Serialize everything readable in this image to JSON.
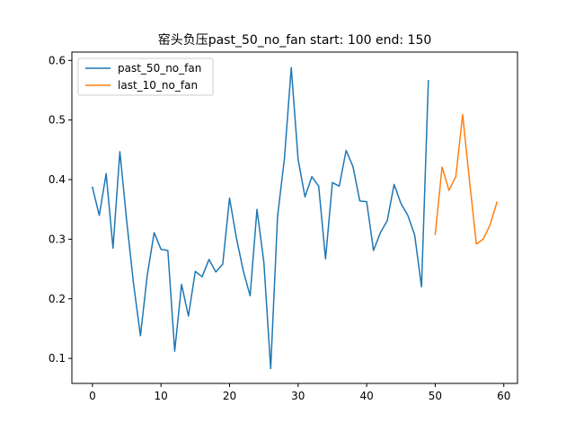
{
  "chart_data": {
    "type": "line",
    "title": "窑头负压past_50_no_fan  start: 100 end: 150",
    "xlabel": "",
    "ylabel": "",
    "xlim": [
      -3,
      62
    ],
    "ylim": [
      0.058,
      0.614
    ],
    "xticks": [
      0,
      10,
      20,
      30,
      40,
      50,
      60
    ],
    "yticks": [
      0.1,
      0.2,
      0.3,
      0.4,
      0.5,
      0.6
    ],
    "grid": false,
    "legend_position": "top-left",
    "series": [
      {
        "name": "past_50_no_fan",
        "color": "#1f77b4",
        "x": [
          0,
          1,
          2,
          3,
          4,
          5,
          6,
          7,
          8,
          9,
          10,
          11,
          12,
          13,
          14,
          15,
          16,
          17,
          18,
          19,
          20,
          21,
          22,
          23,
          24,
          25,
          26,
          27,
          28,
          29,
          30,
          31,
          32,
          33,
          34,
          35,
          36,
          37,
          38,
          39,
          40,
          41,
          42,
          43,
          44,
          45,
          46,
          47,
          48,
          49
        ],
        "y": [
          0.387,
          0.34,
          0.41,
          0.285,
          0.447,
          0.33,
          0.225,
          0.138,
          0.24,
          0.311,
          0.283,
          0.281,
          0.112,
          0.224,
          0.171,
          0.246,
          0.237,
          0.266,
          0.245,
          0.258,
          0.369,
          0.302,
          0.247,
          0.205,
          0.35,
          0.262,
          0.083,
          0.338,
          0.435,
          0.588,
          0.434,
          0.371,
          0.405,
          0.389,
          0.267,
          0.395,
          0.389,
          0.449,
          0.422,
          0.364,
          0.363,
          0.281,
          0.311,
          0.331,
          0.392,
          0.36,
          0.34,
          0.307,
          0.22,
          0.566
        ]
      },
      {
        "name": "last_10_no_fan",
        "color": "#ff7f0e",
        "x": [
          50,
          51,
          52,
          53,
          54,
          55,
          56,
          57,
          58,
          59
        ],
        "y": [
          0.308,
          0.421,
          0.382,
          0.405,
          0.509,
          0.398,
          0.292,
          0.3,
          0.324,
          0.362
        ]
      }
    ]
  }
}
